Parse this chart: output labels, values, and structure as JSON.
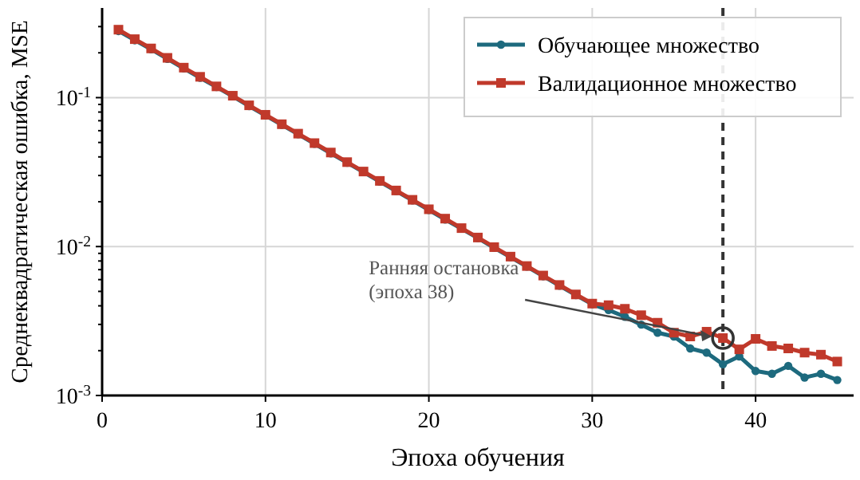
{
  "chart_data": {
    "type": "line",
    "xlabel": "Эпоха обучения",
    "ylabel": "Среднеквадратическая ошибка, MSE",
    "log": "y",
    "grid": true,
    "legend": "top right",
    "line_style": "solid",
    "xlim": [
      0,
      46
    ],
    "xticks": [
      0,
      10,
      20,
      30,
      40
    ],
    "ylim": [
      0.001,
      0.4
    ],
    "yticks": [
      {
        "value": 0.001,
        "label": "10$^{-3}$"
      },
      {
        "value": 0.002,
        "label": null
      },
      {
        "value": 0.003,
        "label": null
      },
      {
        "value": 0.004,
        "label": null
      },
      {
        "value": 0.005,
        "label": null
      },
      {
        "value": 0.006,
        "label": null
      },
      {
        "value": 0.007,
        "label": null
      },
      {
        "value": 0.008,
        "label": null
      },
      {
        "value": 0.009,
        "label": null
      },
      {
        "value": 0.01,
        "label": "10$^{-2}$"
      },
      {
        "value": 0.02,
        "label": null
      },
      {
        "value": 0.03,
        "label": null
      },
      {
        "value": 0.04,
        "label": null
      },
      {
        "value": 0.05,
        "label": null
      },
      {
        "value": 0.06,
        "label": null
      },
      {
        "value": 0.07,
        "label": null
      },
      {
        "value": 0.08,
        "label": null
      },
      {
        "value": 0.09,
        "label": null
      },
      {
        "value": 0.1,
        "label": "10$^{-1}$"
      },
      {
        "value": 0.2,
        "label": null
      },
      {
        "value": 0.3,
        "label": null
      }
    ],
    "x": [
      1,
      2,
      3,
      4,
      5,
      6,
      7,
      8,
      9,
      10,
      11,
      12,
      13,
      14,
      15,
      16,
      17,
      18,
      19,
      20,
      21,
      22,
      23,
      24,
      25,
      26,
      27,
      28,
      29,
      30,
      31,
      32,
      33,
      34,
      35,
      36,
      37,
      38,
      39,
      40,
      41,
      42,
      43,
      44,
      45
    ],
    "series": [
      {
        "name": "Обучающее множество",
        "color": "#1d6a7e",
        "marker": "circle",
        "values": [
          0.28,
          0.243,
          0.211,
          0.182,
          0.157,
          0.136,
          0.118,
          0.102,
          0.0878,
          0.0759,
          0.0657,
          0.0568,
          0.049,
          0.0423,
          0.0366,
          0.0316,
          0.0273,
          0.0236,
          0.0204,
          0.0176,
          0.0152,
          0.0132,
          0.0114,
          0.0098,
          0.00848,
          0.00733,
          0.00632,
          0.00546,
          0.00472,
          0.0041,
          0.00375,
          0.00338,
          0.00299,
          0.00264,
          0.00249,
          0.00207,
          0.00194,
          0.00162,
          0.00183,
          0.00146,
          0.0014,
          0.00158,
          0.00132,
          0.0014,
          0.00127
        ]
      },
      {
        "name": "Валидационное множество",
        "color": "#c0392b",
        "marker": "square",
        "values": [
          0.286,
          0.247,
          0.214,
          0.185,
          0.159,
          0.138,
          0.119,
          0.103,
          0.0888,
          0.0767,
          0.0663,
          0.0573,
          0.0495,
          0.0428,
          0.0369,
          0.0319,
          0.0276,
          0.0238,
          0.0206,
          0.0178,
          0.0154,
          0.0133,
          0.0115,
          0.00991,
          0.00856,
          0.0074,
          0.00639,
          0.00552,
          0.00477,
          0.00414,
          0.00404,
          0.00382,
          0.00346,
          0.00308,
          0.00264,
          0.00249,
          0.00268,
          0.00243,
          0.00204,
          0.0024,
          0.00215,
          0.00207,
          0.00194,
          0.00188,
          0.00169
        ]
      }
    ],
    "ref_lines": [
      {
        "axis": "x",
        "value": 38,
        "color": "#333333",
        "line_style": "dashed"
      }
    ],
    "annotations": [
      {
        "text": "Ранняя остановка\n(эпоха 38)",
        "x": 38,
        "y": 0.00243
      }
    ]
  }
}
